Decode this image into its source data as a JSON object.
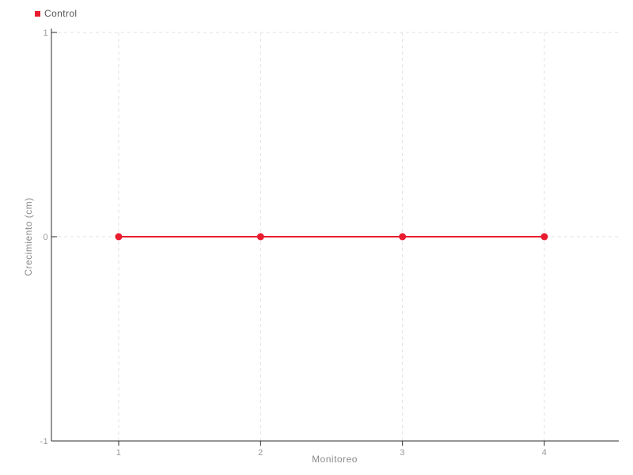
{
  "chart_data": {
    "type": "line",
    "x": [
      1,
      2,
      3,
      4
    ],
    "series": [
      {
        "name": "Control",
        "color": "#e81c2e",
        "values": [
          0,
          0,
          0,
          0
        ],
        "marker": "circle"
      }
    ],
    "title": "",
    "xlabel": "Monitoreo",
    "ylabel": "Crecimiento (cm)",
    "xticks": [
      1,
      2,
      3,
      4
    ],
    "yticks": [
      1,
      0,
      -1
    ],
    "ylim": [
      -1,
      1
    ],
    "grid": "dashed",
    "legend_position": "top-left",
    "colors": {
      "background": "#ffffff",
      "grid": "#e0e0e0",
      "axis": "#2e2e2e",
      "tick_label": "#9a9a9a",
      "axis_title": "#8a8a8a",
      "legend_text": "#555555"
    }
  },
  "legend": {
    "items": [
      {
        "label": "Control",
        "color": "#e81c2e"
      }
    ]
  }
}
